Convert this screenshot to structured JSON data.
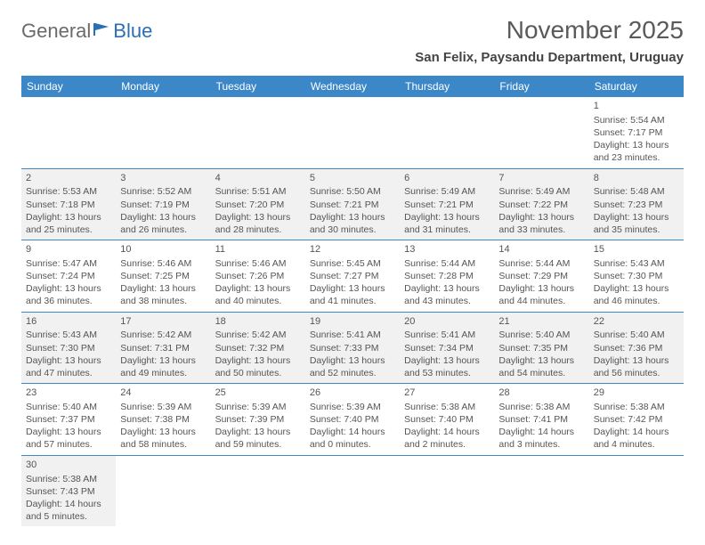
{
  "logo": {
    "part1": "General",
    "part2": "Blue"
  },
  "title": "November 2025",
  "location": "San Felix, Paysandu Department, Uruguay",
  "colors": {
    "header_bg": "#3b87c8",
    "header_fg": "#ffffff",
    "shade_bg": "#f1f1f1",
    "rule": "#3b87c8",
    "text": "#555555",
    "title_color": "#5a5a5a"
  },
  "dow": [
    "Sunday",
    "Monday",
    "Tuesday",
    "Wednesday",
    "Thursday",
    "Friday",
    "Saturday"
  ],
  "weeks": [
    [
      null,
      null,
      null,
      null,
      null,
      null,
      {
        "n": "1",
        "sr": "Sunrise: 5:54 AM",
        "ss": "Sunset: 7:17 PM",
        "d1": "Daylight: 13 hours",
        "d2": "and 23 minutes."
      }
    ],
    [
      {
        "n": "2",
        "sr": "Sunrise: 5:53 AM",
        "ss": "Sunset: 7:18 PM",
        "d1": "Daylight: 13 hours",
        "d2": "and 25 minutes."
      },
      {
        "n": "3",
        "sr": "Sunrise: 5:52 AM",
        "ss": "Sunset: 7:19 PM",
        "d1": "Daylight: 13 hours",
        "d2": "and 26 minutes."
      },
      {
        "n": "4",
        "sr": "Sunrise: 5:51 AM",
        "ss": "Sunset: 7:20 PM",
        "d1": "Daylight: 13 hours",
        "d2": "and 28 minutes."
      },
      {
        "n": "5",
        "sr": "Sunrise: 5:50 AM",
        "ss": "Sunset: 7:21 PM",
        "d1": "Daylight: 13 hours",
        "d2": "and 30 minutes."
      },
      {
        "n": "6",
        "sr": "Sunrise: 5:49 AM",
        "ss": "Sunset: 7:21 PM",
        "d1": "Daylight: 13 hours",
        "d2": "and 31 minutes."
      },
      {
        "n": "7",
        "sr": "Sunrise: 5:49 AM",
        "ss": "Sunset: 7:22 PM",
        "d1": "Daylight: 13 hours",
        "d2": "and 33 minutes."
      },
      {
        "n": "8",
        "sr": "Sunrise: 5:48 AM",
        "ss": "Sunset: 7:23 PM",
        "d1": "Daylight: 13 hours",
        "d2": "and 35 minutes."
      }
    ],
    [
      {
        "n": "9",
        "sr": "Sunrise: 5:47 AM",
        "ss": "Sunset: 7:24 PM",
        "d1": "Daylight: 13 hours",
        "d2": "and 36 minutes."
      },
      {
        "n": "10",
        "sr": "Sunrise: 5:46 AM",
        "ss": "Sunset: 7:25 PM",
        "d1": "Daylight: 13 hours",
        "d2": "and 38 minutes."
      },
      {
        "n": "11",
        "sr": "Sunrise: 5:46 AM",
        "ss": "Sunset: 7:26 PM",
        "d1": "Daylight: 13 hours",
        "d2": "and 40 minutes."
      },
      {
        "n": "12",
        "sr": "Sunrise: 5:45 AM",
        "ss": "Sunset: 7:27 PM",
        "d1": "Daylight: 13 hours",
        "d2": "and 41 minutes."
      },
      {
        "n": "13",
        "sr": "Sunrise: 5:44 AM",
        "ss": "Sunset: 7:28 PM",
        "d1": "Daylight: 13 hours",
        "d2": "and 43 minutes."
      },
      {
        "n": "14",
        "sr": "Sunrise: 5:44 AM",
        "ss": "Sunset: 7:29 PM",
        "d1": "Daylight: 13 hours",
        "d2": "and 44 minutes."
      },
      {
        "n": "15",
        "sr": "Sunrise: 5:43 AM",
        "ss": "Sunset: 7:30 PM",
        "d1": "Daylight: 13 hours",
        "d2": "and 46 minutes."
      }
    ],
    [
      {
        "n": "16",
        "sr": "Sunrise: 5:43 AM",
        "ss": "Sunset: 7:30 PM",
        "d1": "Daylight: 13 hours",
        "d2": "and 47 minutes."
      },
      {
        "n": "17",
        "sr": "Sunrise: 5:42 AM",
        "ss": "Sunset: 7:31 PM",
        "d1": "Daylight: 13 hours",
        "d2": "and 49 minutes."
      },
      {
        "n": "18",
        "sr": "Sunrise: 5:42 AM",
        "ss": "Sunset: 7:32 PM",
        "d1": "Daylight: 13 hours",
        "d2": "and 50 minutes."
      },
      {
        "n": "19",
        "sr": "Sunrise: 5:41 AM",
        "ss": "Sunset: 7:33 PM",
        "d1": "Daylight: 13 hours",
        "d2": "and 52 minutes."
      },
      {
        "n": "20",
        "sr": "Sunrise: 5:41 AM",
        "ss": "Sunset: 7:34 PM",
        "d1": "Daylight: 13 hours",
        "d2": "and 53 minutes."
      },
      {
        "n": "21",
        "sr": "Sunrise: 5:40 AM",
        "ss": "Sunset: 7:35 PM",
        "d1": "Daylight: 13 hours",
        "d2": "and 54 minutes."
      },
      {
        "n": "22",
        "sr": "Sunrise: 5:40 AM",
        "ss": "Sunset: 7:36 PM",
        "d1": "Daylight: 13 hours",
        "d2": "and 56 minutes."
      }
    ],
    [
      {
        "n": "23",
        "sr": "Sunrise: 5:40 AM",
        "ss": "Sunset: 7:37 PM",
        "d1": "Daylight: 13 hours",
        "d2": "and 57 minutes."
      },
      {
        "n": "24",
        "sr": "Sunrise: 5:39 AM",
        "ss": "Sunset: 7:38 PM",
        "d1": "Daylight: 13 hours",
        "d2": "and 58 minutes."
      },
      {
        "n": "25",
        "sr": "Sunrise: 5:39 AM",
        "ss": "Sunset: 7:39 PM",
        "d1": "Daylight: 13 hours",
        "d2": "and 59 minutes."
      },
      {
        "n": "26",
        "sr": "Sunrise: 5:39 AM",
        "ss": "Sunset: 7:40 PM",
        "d1": "Daylight: 14 hours",
        "d2": "and 0 minutes."
      },
      {
        "n": "27",
        "sr": "Sunrise: 5:38 AM",
        "ss": "Sunset: 7:40 PM",
        "d1": "Daylight: 14 hours",
        "d2": "and 2 minutes."
      },
      {
        "n": "28",
        "sr": "Sunrise: 5:38 AM",
        "ss": "Sunset: 7:41 PM",
        "d1": "Daylight: 14 hours",
        "d2": "and 3 minutes."
      },
      {
        "n": "29",
        "sr": "Sunrise: 5:38 AM",
        "ss": "Sunset: 7:42 PM",
        "d1": "Daylight: 14 hours",
        "d2": "and 4 minutes."
      }
    ],
    [
      {
        "n": "30",
        "sr": "Sunrise: 5:38 AM",
        "ss": "Sunset: 7:43 PM",
        "d1": "Daylight: 14 hours",
        "d2": "and 5 minutes."
      },
      null,
      null,
      null,
      null,
      null,
      null
    ]
  ]
}
